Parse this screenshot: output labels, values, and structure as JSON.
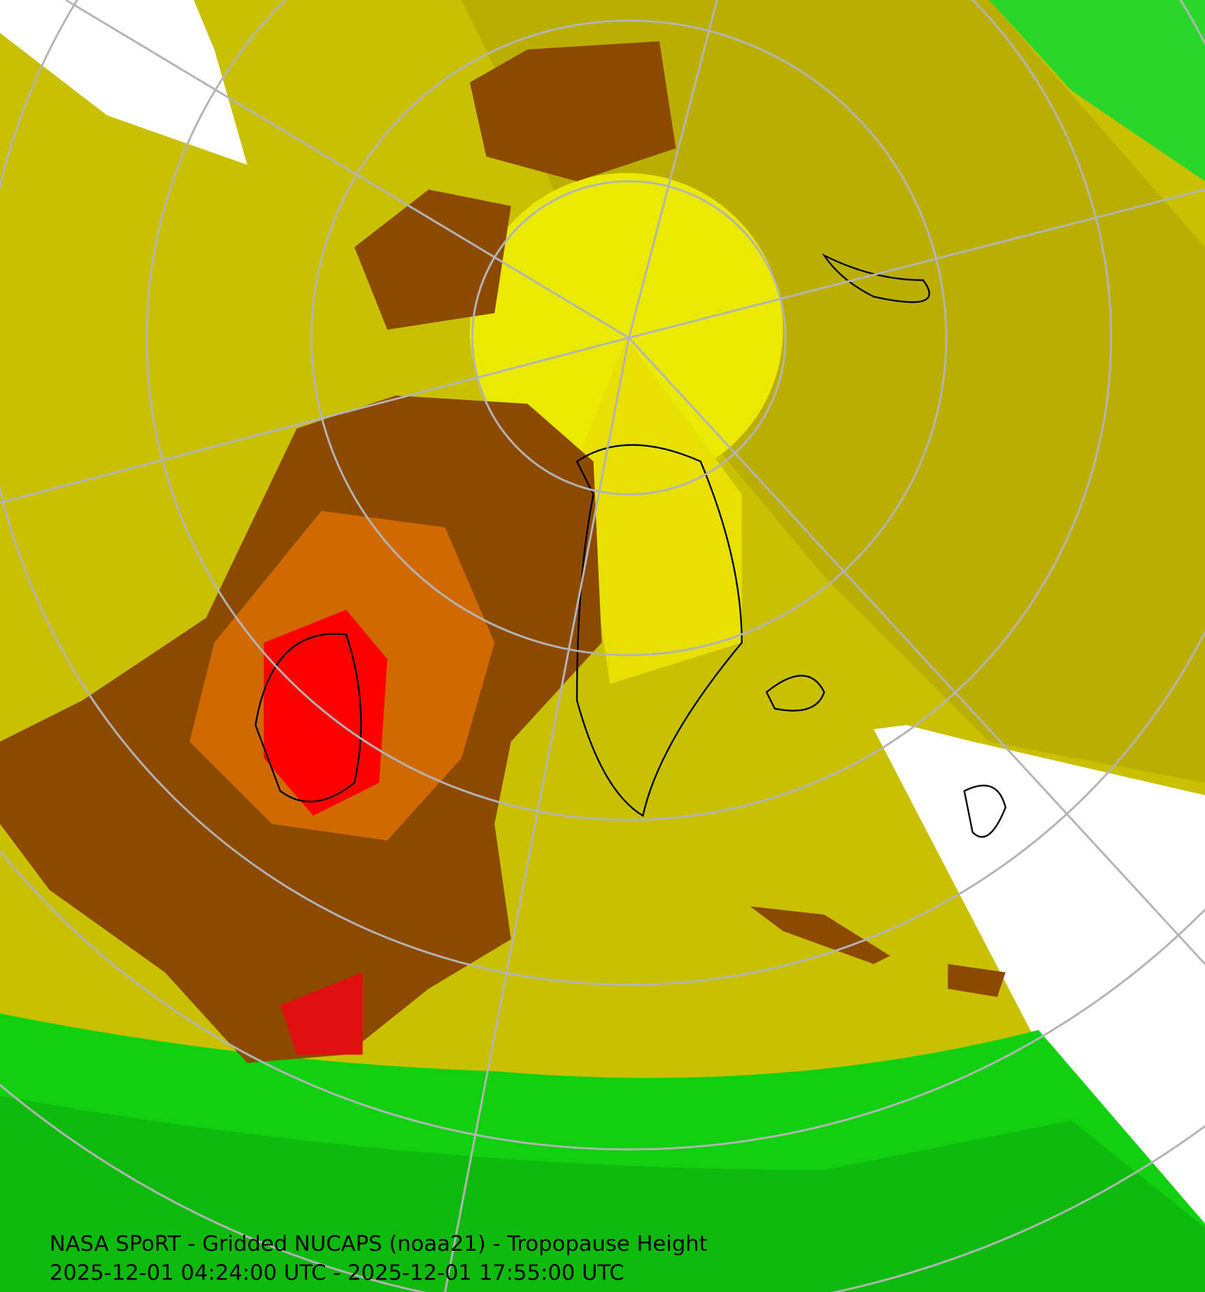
{
  "title": "NASA SPoRT - Gridded NUCAPS (noaa21) - Tropopause Height",
  "time_range": "2025-12-01 04:24:00 UTC - 2025-12-01 17:55:00 UTC"
}
